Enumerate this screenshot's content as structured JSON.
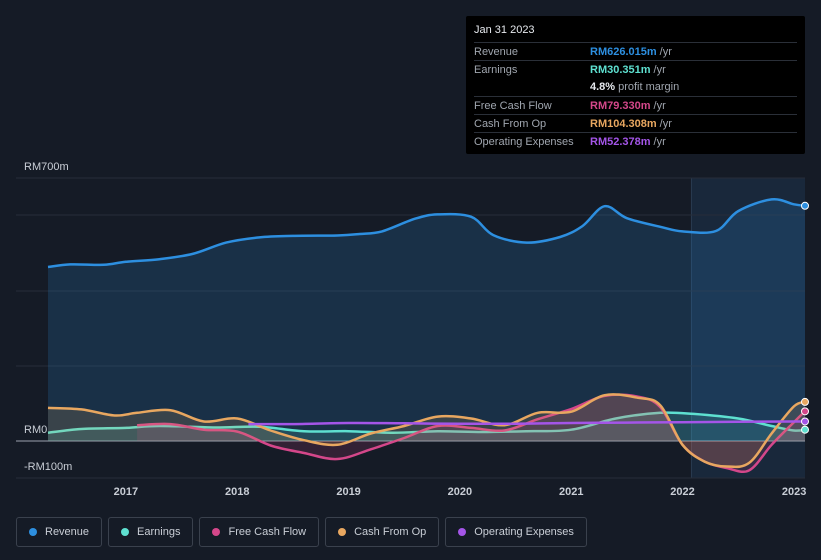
{
  "tooltip": {
    "date": "Jan 31 2023",
    "rows": [
      {
        "label": "Revenue",
        "value": "RM626.015m",
        "unit": "/yr",
        "color": "#2d8fe0"
      },
      {
        "label": "Earnings",
        "value": "RM30.351m",
        "unit": "/yr",
        "color": "#5ee0d0"
      },
      {
        "label": "",
        "value": "4.8%",
        "unit": "profit margin",
        "color": "#e6e9ee"
      },
      {
        "label": "Free Cash Flow",
        "value": "RM79.330m",
        "unit": "/yr",
        "color": "#d4478a"
      },
      {
        "label": "Cash From Op",
        "value": "RM104.308m",
        "unit": "/yr",
        "color": "#e8a760"
      },
      {
        "label": "Operating Expenses",
        "value": "RM52.378m",
        "unit": "/yr",
        "color": "#a455e8"
      }
    ]
  },
  "chart_data": {
    "type": "area",
    "title": "",
    "y_axis_labels": [
      "RM700m",
      "RM0",
      "-RM100m"
    ],
    "ylim": [
      -100,
      700
    ],
    "xlim": [
      2016.3,
      2023.1
    ],
    "x_tick_labels": [
      "2017",
      "2018",
      "2019",
      "2020",
      "2021",
      "2022",
      "2023"
    ],
    "x_ticks": [
      2017,
      2018,
      2019,
      2020,
      2021,
      2022,
      2023
    ],
    "highlight_start": 2022.08,
    "series": [
      {
        "name": "Revenue",
        "color": "#2d8fe0",
        "fill": true,
        "x": [
          2016.3,
          2016.5,
          2016.8,
          2017.0,
          2017.3,
          2017.6,
          2017.9,
          2018.2,
          2018.5,
          2018.9,
          2019.1,
          2019.3,
          2019.6,
          2019.8,
          2020.1,
          2020.3,
          2020.6,
          2020.9,
          2021.1,
          2021.3,
          2021.5,
          2021.8,
          2022.0,
          2022.3,
          2022.5,
          2022.8,
          2023.0,
          2023.1
        ],
        "values": [
          463,
          470,
          469,
          477,
          484,
          498,
          528,
          542,
          546,
          547,
          551,
          558,
          592,
          603,
          597,
          548,
          528,
          543,
          572,
          625,
          593,
          570,
          558,
          559,
          612,
          643,
          630,
          626
        ]
      },
      {
        "name": "Earnings",
        "color": "#5ee0d0",
        "fill": true,
        "x": [
          2016.3,
          2016.6,
          2017.0,
          2017.3,
          2017.8,
          2018.2,
          2018.6,
          2019.0,
          2019.4,
          2019.8,
          2020.2,
          2020.6,
          2021.0,
          2021.4,
          2021.8,
          2022.1,
          2022.5,
          2022.8,
          2023.0,
          2023.1
        ],
        "values": [
          22,
          32,
          35,
          40,
          36,
          38,
          26,
          26,
          22,
          26,
          24,
          26,
          30,
          60,
          75,
          72,
          60,
          40,
          28,
          30
        ]
      },
      {
        "name": "Free Cash Flow",
        "color": "#d4478a",
        "fill": true,
        "x": [
          2017.1,
          2017.4,
          2017.7,
          2018.0,
          2018.3,
          2018.6,
          2018.9,
          2019.2,
          2019.5,
          2019.8,
          2020.1,
          2020.4,
          2020.7,
          2021.0,
          2021.3,
          2021.6,
          2021.8,
          2022.0,
          2022.2,
          2022.4,
          2022.6,
          2022.8,
          2023.0,
          2023.1
        ],
        "values": [
          42,
          45,
          30,
          25,
          -12,
          -32,
          -48,
          -22,
          8,
          40,
          35,
          28,
          58,
          85,
          120,
          118,
          90,
          -10,
          -55,
          -72,
          -78,
          -10,
          50,
          79
        ]
      },
      {
        "name": "Cash From Op",
        "color": "#e8a760",
        "fill": true,
        "x": [
          2016.3,
          2016.6,
          2016.9,
          2017.1,
          2017.4,
          2017.7,
          2018.0,
          2018.3,
          2018.6,
          2018.9,
          2019.2,
          2019.5,
          2019.8,
          2020.1,
          2020.4,
          2020.7,
          2021.0,
          2021.3,
          2021.6,
          2021.8,
          2022.0,
          2022.2,
          2022.4,
          2022.6,
          2022.8,
          2023.0,
          2023.1
        ],
        "values": [
          88,
          84,
          68,
          75,
          82,
          52,
          60,
          28,
          2,
          -10,
          20,
          40,
          65,
          60,
          42,
          75,
          78,
          122,
          115,
          95,
          -10,
          -55,
          -68,
          -58,
          20,
          92,
          104
        ]
      },
      {
        "name": "Operating Expenses",
        "color": "#a455e8",
        "fill": false,
        "x": [
          2018.1,
          2018.5,
          2019.0,
          2019.5,
          2020.0,
          2020.5,
          2021.0,
          2021.5,
          2022.0,
          2022.5,
          2023.0,
          2023.1
        ],
        "values": [
          45,
          45,
          48,
          47,
          46,
          46,
          48,
          49,
          50,
          51,
          52,
          52
        ]
      }
    ]
  },
  "legend": [
    {
      "label": "Revenue",
      "color": "#2d8fe0"
    },
    {
      "label": "Earnings",
      "color": "#5ee0d0"
    },
    {
      "label": "Free Cash Flow",
      "color": "#d4478a"
    },
    {
      "label": "Cash From Op",
      "color": "#e8a760"
    },
    {
      "label": "Operating Expenses",
      "color": "#a455e8"
    }
  ]
}
